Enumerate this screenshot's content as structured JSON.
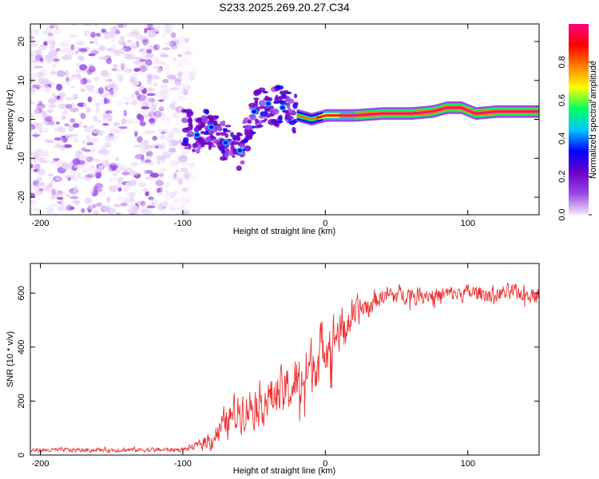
{
  "figure_title": "S233.2025.269.20.27.C34",
  "chart_data": [
    {
      "type": "heatmap",
      "title": "S233.2025.269.20.27.C34",
      "xlabel": "Height of straight line (km)",
      "ylabel": "Frequency (Hz)",
      "xlim": [
        -207,
        150
      ],
      "ylim": [
        -24.5,
        24.5
      ],
      "xticks": [
        -200,
        -100,
        0,
        100
      ],
      "yticks": [
        -20,
        -10,
        0,
        10,
        20
      ],
      "colorbar": {
        "label": "Normalized spectral amplitude",
        "range": [
          0,
          1
        ],
        "ticks": [
          0.0,
          0.2,
          0.4,
          0.6,
          0.8
        ],
        "tick_labels": [
          "0.0",
          "0.2",
          "0.4",
          "0.6",
          "0.8"
        ],
        "colormap": [
          "#f4e8fb",
          "#9a48e6",
          "#6b00c8",
          "#0000ff",
          "#00c8ff",
          "#00ff60",
          "#ffff00",
          "#ff8000",
          "#ff0000",
          "#ff0080"
        ]
      },
      "regions": [
        {
          "x_range": [
            -207,
            -100
          ],
          "description": "noise",
          "amplitude": [
            0.0,
            0.15
          ]
        },
        {
          "x_range": [
            -100,
            -20
          ],
          "description": "scattered signal patches",
          "amplitude": [
            0.1,
            0.3
          ]
        },
        {
          "x_range": [
            -20,
            150
          ],
          "description": "narrow tone",
          "amplitude": [
            0.3,
            1.0
          ]
        }
      ],
      "ridge": {
        "x": [
          -100,
          -90,
          -80,
          -70,
          -60,
          -50,
          -40,
          -30,
          -20,
          -10,
          0,
          20,
          40,
          60,
          75,
          85,
          95,
          105,
          120,
          150
        ],
        "freq": [
          -2,
          -4,
          -2,
          -6,
          -8,
          2,
          4,
          3,
          1,
          0,
          1,
          1,
          1.5,
          1.5,
          2,
          3,
          3,
          1.5,
          2,
          2
        ]
      }
    },
    {
      "type": "line",
      "xlabel": "Height of straight line (km)",
      "ylabel": "SNR (10 * v/v)",
      "xlim": [
        -207,
        150
      ],
      "ylim": [
        0,
        710
      ],
      "xticks": [
        -200,
        -100,
        0,
        100
      ],
      "yticks": [
        0,
        200,
        400,
        600
      ],
      "line_color": "#ee3333",
      "series": [
        {
          "name": "SNR",
          "envelope": {
            "x": [
              -207,
              -100,
              -90,
              -80,
              -70,
              -60,
              -50,
              -40,
              -30,
              -20,
              -10,
              0,
              10,
              20,
              30,
              40,
              60,
              80,
              100,
              120,
              150
            ],
            "mean": [
              18,
              20,
              35,
              60,
              120,
              170,
              190,
              210,
              230,
              260,
              330,
              420,
              460,
              520,
              560,
              590,
              600,
              595,
              600,
              600,
              600
            ],
            "noise": [
              12,
              12,
              20,
              60,
              90,
              110,
              110,
              120,
              130,
              140,
              150,
              140,
              120,
              90,
              60,
              50,
              45,
              45,
              45,
              45,
              45
            ]
          }
        }
      ]
    }
  ]
}
